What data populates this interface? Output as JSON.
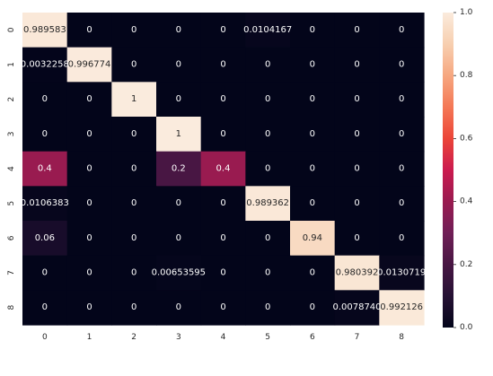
{
  "chart_data": {
    "type": "heatmap",
    "title": "",
    "xlabel": "",
    "ylabel": "",
    "x_ticks": [
      "0",
      "1",
      "2",
      "3",
      "4",
      "5",
      "6",
      "7",
      "8"
    ],
    "y_ticks": [
      "0",
      "1",
      "2",
      "3",
      "4",
      "5",
      "6",
      "7",
      "8"
    ],
    "values": [
      [
        0.989583,
        0,
        0,
        0,
        0,
        0.0104167,
        0,
        0,
        0
      ],
      [
        0.0032258,
        0.996774,
        0,
        0,
        0,
        0,
        0,
        0,
        0
      ],
      [
        0,
        0,
        1,
        0,
        0,
        0,
        0,
        0,
        0
      ],
      [
        0,
        0,
        0,
        1,
        0,
        0,
        0,
        0,
        0
      ],
      [
        0.4,
        0,
        0,
        0.2,
        0.4,
        0,
        0,
        0,
        0
      ],
      [
        0.0106383,
        0,
        0,
        0,
        0,
        0.989362,
        0,
        0,
        0
      ],
      [
        0.06,
        0,
        0,
        0,
        0,
        0,
        0.94,
        0,
        0
      ],
      [
        0,
        0,
        0,
        0.00653595,
        0,
        0,
        0,
        0.980392,
        0.0130719
      ],
      [
        0,
        0,
        0,
        0,
        0,
        0,
        0,
        0.007874,
        0.992126
      ]
    ],
    "annotations": [
      [
        "0.989583",
        "0",
        "0",
        "0",
        "0",
        "0.0104167",
        "0",
        "0",
        "0"
      ],
      [
        "0.0032258",
        "0.996774",
        "0",
        "0",
        "0",
        "0",
        "0",
        "0",
        "0"
      ],
      [
        "0",
        "0",
        "1",
        "0",
        "0",
        "0",
        "0",
        "0",
        "0"
      ],
      [
        "0",
        "0",
        "0",
        "1",
        "0",
        "0",
        "0",
        "0",
        "0"
      ],
      [
        "0.4",
        "0",
        "0",
        "0.2",
        "0.4",
        "0",
        "0",
        "0",
        "0"
      ],
      [
        "0.0106383",
        "0",
        "0",
        "0",
        "0",
        "0.989362",
        "0",
        "0",
        "0"
      ],
      [
        "0.06",
        "0",
        "0",
        "0",
        "0",
        "0",
        "0.94",
        "0",
        "0"
      ],
      [
        "0",
        "0",
        "0",
        "0.00653595",
        "0",
        "0",
        "0",
        "0.980392",
        "0.0130719"
      ],
      [
        "0",
        "0",
        "0",
        "0",
        "0",
        "0",
        "0",
        "0.0078740",
        "0.992126"
      ]
    ],
    "colorbar": {
      "min": 0.0,
      "max": 1.0,
      "ticks": [
        "0.0",
        "0.2",
        "0.4",
        "0.6",
        "0.8",
        "1.0"
      ],
      "colormap": "rocket",
      "color_low": "#03051a",
      "color_high": "#faebdd"
    },
    "grid": false,
    "legend": "colorbar-right"
  }
}
